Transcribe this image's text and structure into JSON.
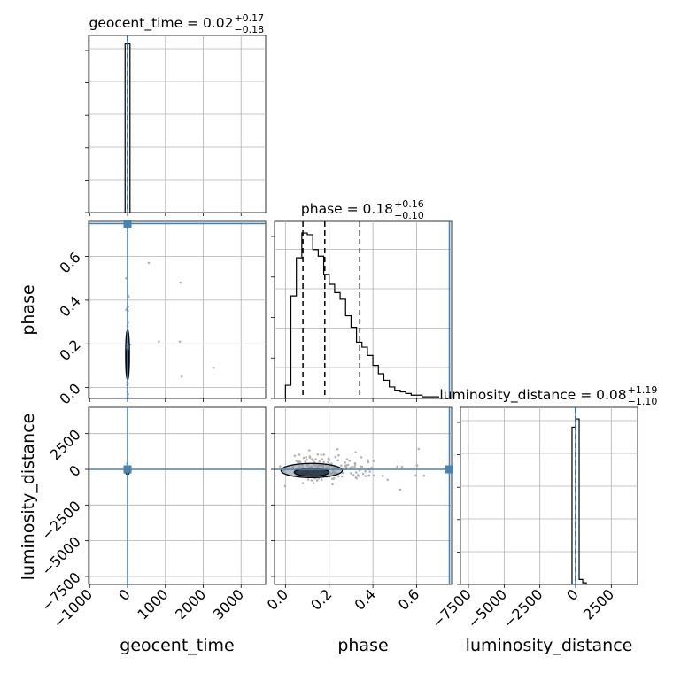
{
  "chart_data": {
    "type": "scatter",
    "subtype": "corner plot (1D histograms on diagonal, 2D density contours below)",
    "grid": true,
    "colors": {
      "truth": "#4682b4",
      "hist": "#000000",
      "samples": "#b4b4b4",
      "fill": "#7f8c9a"
    },
    "parameters": [
      "geocent_time",
      "phase",
      "luminosity_distance"
    ],
    "titles": [
      {
        "label": "geocent_time = 0.02",
        "plus": "+0.17",
        "minus": "−0.18"
      },
      {
        "label": "phase = 0.18",
        "plus": "+0.16",
        "minus": "−0.10"
      },
      {
        "label": "luminosity_distance = 0.08",
        "plus": "+1.19",
        "minus": "−1.10"
      }
    ],
    "axis_labels": {
      "x": [
        "geocent_time",
        "phase",
        "luminosity_distance"
      ],
      "y": [
        "phase",
        "luminosity_distance"
      ]
    },
    "ranges": {
      "geocent_time": [
        -1030,
        3650
      ],
      "phase": [
        -0.05,
        0.76
      ],
      "luminosity_distance": [
        -8060,
        4340
      ]
    },
    "ticks": {
      "geocent_time": {
        "values": [
          -1000,
          0,
          1000,
          2000,
          3000
        ],
        "labels": [
          "−1000",
          "0",
          "1000",
          "2000",
          "3000"
        ]
      },
      "phase": {
        "values": [
          0.0,
          0.2,
          0.4,
          0.6
        ],
        "labels": [
          "0.0",
          "0.2",
          "0.4",
          "0.6"
        ]
      },
      "luminosity_distance": {
        "values": [
          -7500,
          -5000,
          -2500,
          0,
          2500
        ],
        "labels": [
          "−7500",
          "−5000",
          "−2500",
          "0",
          "2500"
        ]
      }
    },
    "truth": {
      "geocent_time": 0,
      "phase": 0.75,
      "luminosity_distance": 0
    },
    "quantiles": {
      "geocent_time": [
        -0.16,
        0.02,
        0.19
      ],
      "phase": [
        0.08,
        0.18,
        0.34
      ],
      "luminosity_distance": [
        -1.02,
        0.08,
        1.27
      ]
    },
    "hist_geocent_time": {
      "edges": [
        -65,
        65
      ],
      "counts": [
        1.0
      ],
      "ymax": 1.05
    },
    "hist_phase": {
      "edges": [
        0.0,
        0.025,
        0.05,
        0.075,
        0.1,
        0.125,
        0.15,
        0.175,
        0.2,
        0.225,
        0.25,
        0.275,
        0.3,
        0.325,
        0.35,
        0.375,
        0.4,
        0.425,
        0.45,
        0.475,
        0.5,
        0.525,
        0.55,
        0.575,
        0.6,
        0.625,
        0.65,
        0.675,
        0.7
      ],
      "counts": [
        0.08,
        0.62,
        0.85,
        1.0,
        0.99,
        0.9,
        0.86,
        0.75,
        0.69,
        0.64,
        0.6,
        0.5,
        0.43,
        0.34,
        0.31,
        0.26,
        0.2,
        0.15,
        0.11,
        0.07,
        0.05,
        0.04,
        0.03,
        0.02,
        0.02,
        0.01,
        0.01,
        0.01
      ],
      "ymax": 1.07
    },
    "hist_luminosity_distance": {
      "edges": [
        -250,
        0,
        250,
        500,
        750
      ],
      "counts": [
        0.95,
        1.0,
        0.03,
        0.01
      ],
      "ymax": 1.07
    },
    "density": {
      "geocent_time_vs_phase": {
        "center": [
          0,
          0.15
        ],
        "half_width": [
          50,
          0.115
        ],
        "inner_half_width": [
          30,
          0.06
        ]
      },
      "geocent_time_vs_luminosity_distance": {
        "center": [
          0,
          -150
        ],
        "half_width": [
          60,
          200
        ]
      },
      "phase_vs_luminosity_distance": {
        "center": [
          0.12,
          -80
        ],
        "half_width": [
          0.14,
          500
        ],
        "inner_half_width": [
          0.08,
          280
        ]
      }
    }
  }
}
